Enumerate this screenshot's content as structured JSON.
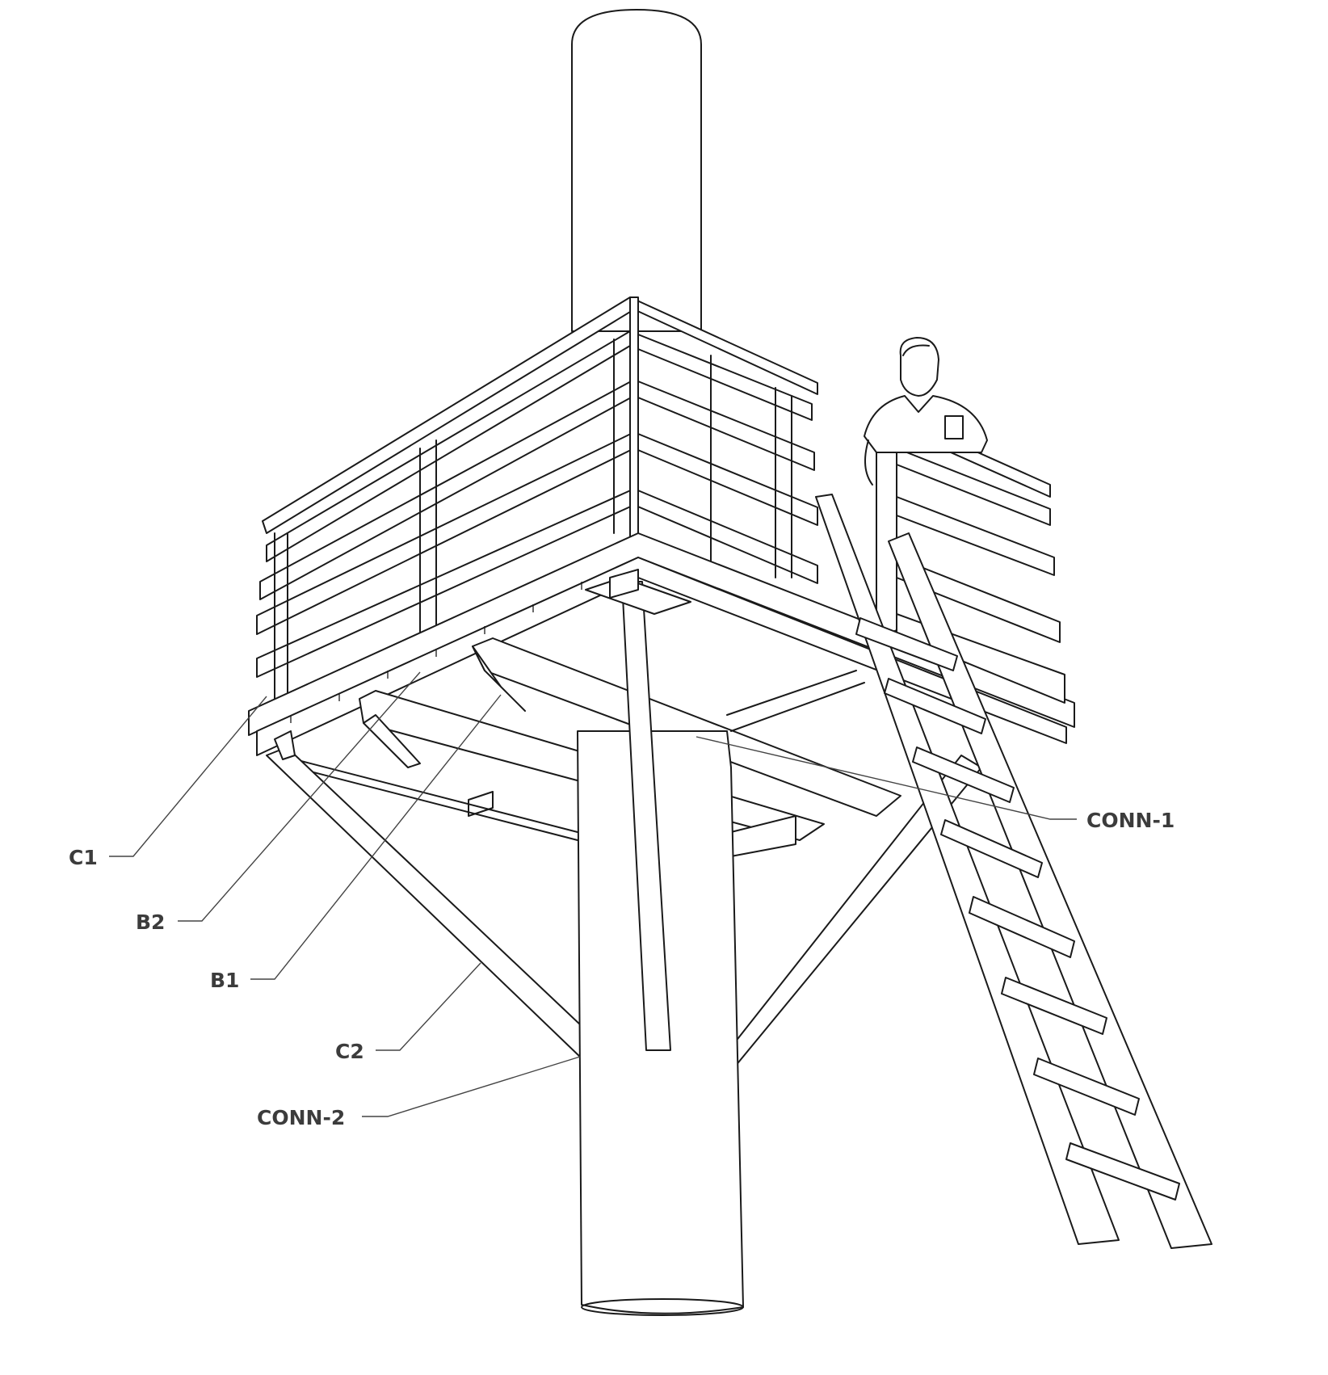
{
  "labels": {
    "c1": "C1",
    "b2": "B2",
    "b1": "B1",
    "c2": "C2",
    "conn2": "CONN-2",
    "conn1": "CONN-1"
  },
  "colors": {
    "line": "#1a1a1a",
    "label": "#3c3c3c",
    "background": "#ffffff"
  }
}
